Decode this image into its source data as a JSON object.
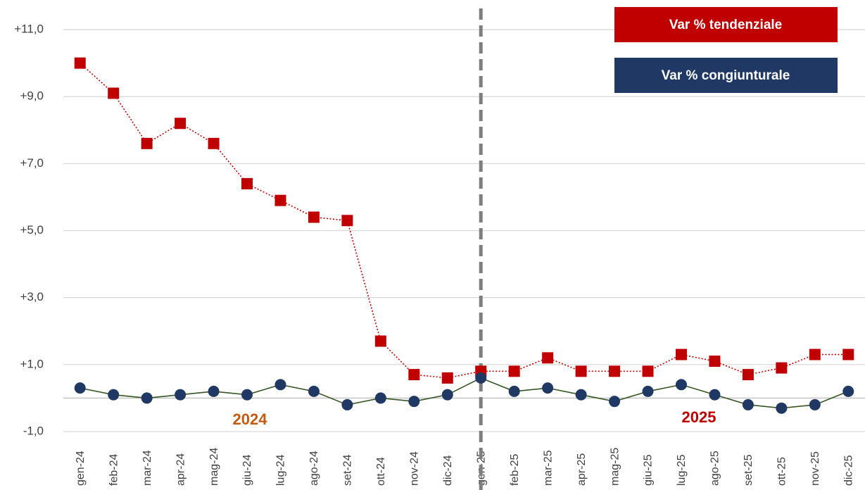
{
  "chart_data": {
    "type": "line",
    "categories": [
      "gen-24",
      "feb-24",
      "mar-24",
      "apr-24",
      "mag-24",
      "giu-24",
      "lug-24",
      "ago-24",
      "set-24",
      "ott-24",
      "nov-24",
      "dic-24",
      "gen-25",
      "feb-25",
      "mar-25",
      "apr-25",
      "mag-25",
      "giu-25",
      "lug-25",
      "ago-25",
      "set-25",
      "ott-25",
      "nov-25",
      "dic-25"
    ],
    "series": [
      {
        "name": "Var % tendenziale",
        "color": "#c00000",
        "values": [
          10.0,
          9.1,
          7.6,
          8.2,
          7.6,
          6.4,
          5.9,
          5.4,
          5.3,
          1.7,
          0.7,
          0.6,
          0.8,
          0.8,
          1.2,
          0.8,
          0.8,
          0.8,
          1.3,
          1.1,
          0.7,
          0.9,
          1.3,
          1.3
        ]
      },
      {
        "name": "Var % congiunturale",
        "color": "#1f3864",
        "values": [
          0.3,
          0.1,
          0.0,
          0.1,
          0.2,
          0.1,
          0.4,
          0.2,
          -0.2,
          0.0,
          -0.1,
          0.1,
          0.6,
          0.2,
          0.3,
          0.1,
          -0.1,
          0.2,
          0.4,
          0.1,
          -0.2,
          -0.3,
          -0.2,
          0.2
        ]
      }
    ],
    "ylim": [
      -1,
      11.6
    ],
    "yticks": [
      {
        "value": -1,
        "label": "-1,0"
      },
      {
        "value": 1,
        "label": "+1,0"
      },
      {
        "value": 3,
        "label": "+3,0"
      },
      {
        "value": 5,
        "label": "+5,0"
      },
      {
        "value": 7,
        "label": "+7,0"
      },
      {
        "value": 9,
        "label": "+9,0"
      },
      {
        "value": 11,
        "label": "+11,0"
      }
    ],
    "grid": true,
    "annotations": [
      {
        "text": "2024",
        "color": "#c55a11"
      },
      {
        "text": "2025",
        "color": "#c00000"
      }
    ]
  }
}
